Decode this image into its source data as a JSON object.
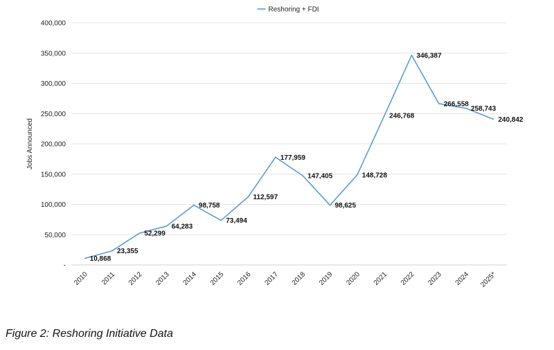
{
  "chart_data": {
    "type": "line",
    "title": "",
    "xlabel": "",
    "ylabel": "Jobs Announced",
    "categories": [
      "2010",
      "2011",
      "2012",
      "2013",
      "2014",
      "2015",
      "2016",
      "2017",
      "2018",
      "2019",
      "2020",
      "2021",
      "2022",
      "2023",
      "2024",
      "2025*"
    ],
    "series": [
      {
        "name": "Reshoring + FDI",
        "color": "#5b9bd5",
        "values": [
          10868,
          23355,
          52299,
          64283,
          98758,
          73494,
          112597,
          177959,
          147405,
          98625,
          148728,
          246768,
          346387,
          266558,
          258743,
          240842
        ]
      }
    ],
    "data_labels": [
      "10,868",
      "23,355",
      "52,299",
      "64,283",
      "98,758",
      "73,494",
      "112,597",
      "177,959",
      "147,405",
      "98,625",
      "148,728",
      "246,768",
      "346,387",
      "266,558",
      "258,743",
      "240,842"
    ],
    "ylim": [
      0,
      400000
    ],
    "y_ticks": [
      0,
      50000,
      100000,
      150000,
      200000,
      250000,
      300000,
      350000,
      400000
    ],
    "y_tick_labels": [
      "-",
      "50,000",
      "100,000",
      "150,000",
      "200,000",
      "250,000",
      "300,000",
      "350,000",
      "400,000"
    ],
    "grid": "horizontal",
    "legend": "top-center"
  },
  "caption": "Figure 2: Reshoring Initiative Data"
}
